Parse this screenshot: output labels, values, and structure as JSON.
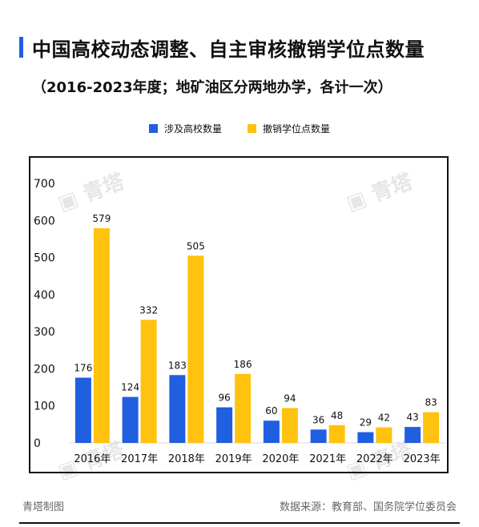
{
  "header": {
    "title": "中国高校动态调整、自主审核撤销学位点数量",
    "subtitle": "（2016-2023年度；地矿油区分两地办学，各计一次）"
  },
  "colors": {
    "accent": "#1f5fe0",
    "series1": "#1f5fe0",
    "series2": "#ffc20e"
  },
  "chart_data": {
    "type": "bar",
    "categories": [
      "2016年",
      "2017年",
      "2018年",
      "2019年",
      "2020年",
      "2021年",
      "2022年",
      "2023年"
    ],
    "series": [
      {
        "name": "涉及高校数量",
        "values": [
          176,
          124,
          183,
          96,
          60,
          36,
          29,
          43
        ]
      },
      {
        "name": "撤销学位点数量",
        "values": [
          579,
          332,
          505,
          186,
          94,
          48,
          42,
          83
        ]
      }
    ],
    "yticks": [
      0,
      100,
      200,
      300,
      400,
      500,
      600,
      700
    ],
    "ylim": [
      0,
      700
    ],
    "legend_position": "top-center",
    "grid": false
  },
  "watermark": "青塔",
  "footer": {
    "left": "青塔制图",
    "right": "数据来源：教育部、国务院学位委员会"
  }
}
